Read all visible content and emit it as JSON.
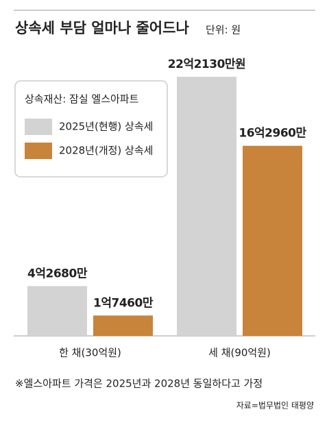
{
  "chart_data": {
    "type": "bar",
    "title": "상속세 부담 얼마나 줄어드나",
    "subtitle": "단위: 원",
    "legend_title": "상속재산: 잠실 엘스아파트",
    "categories": [
      "한 채(30억원)",
      "세 채(90억원)"
    ],
    "series": [
      {
        "name": "2025년(현행) 상속세",
        "color": "#d3d3d3",
        "values": [
          426800000,
          2221300000
        ],
        "value_labels": [
          "4억2680만",
          "22억2130만원"
        ]
      },
      {
        "name": "2028년(개정) 상속세",
        "color": "#c8843a",
        "values": [
          174600000,
          1629600000
        ],
        "value_labels": [
          "1억7460만",
          "16억2960만"
        ]
      }
    ],
    "legend": "upper left",
    "footnote": "※엘스아파트 가격은 2025년과 2028년 동일하다고 가정",
    "source": "자료=법무법인 태평양"
  }
}
